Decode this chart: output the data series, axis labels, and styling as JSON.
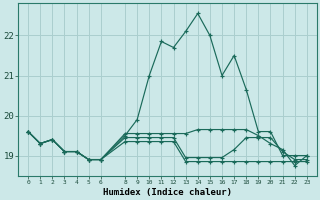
{
  "xlabel": "Humidex (Indice chaleur)",
  "background_color": "#cce8e8",
  "grid_color": "#aacece",
  "line_color": "#1a6a5a",
  "x_values": [
    0,
    1,
    2,
    3,
    4,
    5,
    6,
    8,
    9,
    10,
    11,
    12,
    13,
    14,
    15,
    16,
    17,
    18,
    19,
    20,
    21,
    22,
    23
  ],
  "series": [
    [
      19.6,
      19.3,
      19.4,
      19.1,
      19.1,
      18.9,
      18.9,
      19.5,
      19.9,
      21.0,
      21.85,
      21.7,
      22.1,
      22.55,
      22.0,
      21.0,
      21.5,
      20.65,
      19.6,
      19.6,
      19.0,
      19.0,
      19.0
    ],
    [
      19.6,
      19.3,
      19.4,
      19.1,
      19.1,
      18.9,
      18.9,
      19.55,
      19.55,
      19.55,
      19.55,
      19.55,
      19.55,
      19.65,
      19.65,
      19.65,
      19.65,
      19.65,
      19.5,
      19.3,
      19.15,
      18.75,
      19.0
    ],
    [
      19.6,
      19.3,
      19.4,
      19.1,
      19.1,
      18.9,
      18.9,
      19.45,
      19.45,
      19.45,
      19.45,
      19.45,
      18.95,
      18.95,
      18.95,
      18.95,
      19.15,
      19.45,
      19.45,
      19.45,
      19.1,
      18.9,
      18.9
    ],
    [
      19.6,
      19.3,
      19.4,
      19.1,
      19.1,
      18.9,
      18.9,
      19.35,
      19.35,
      19.35,
      19.35,
      19.35,
      18.85,
      18.85,
      18.85,
      18.85,
      18.85,
      18.85,
      18.85,
      18.85,
      18.85,
      18.85,
      18.85
    ]
  ],
  "ylim": [
    18.5,
    22.8
  ],
  "yticks": [
    19,
    20,
    21,
    22
  ],
  "xtick_labels": [
    "0",
    "1",
    "2",
    "3",
    "4",
    "5",
    "6",
    "8",
    "9",
    "10",
    "11",
    "12",
    "13",
    "14",
    "15",
    "16",
    "17",
    "18",
    "19",
    "20",
    "21",
    "22",
    "23"
  ],
  "xlim": [
    -0.8,
    23.8
  ]
}
